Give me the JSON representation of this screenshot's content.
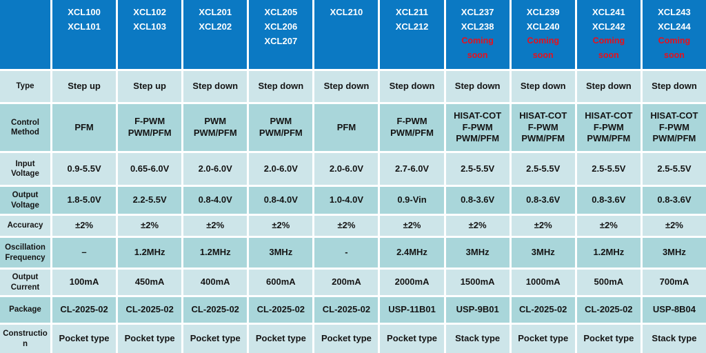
{
  "colors": {
    "header_blue": "#0b79c3",
    "row_light": "#cde5e9",
    "row_dark": "#a9d6da",
    "grid_white": "#ffffff",
    "text_dark": "#141414",
    "header_text": "#ffffff",
    "coming_soon_red": "#e8101c"
  },
  "table": {
    "coming_soon_label": "Coming soon",
    "columns": [
      {
        "models": "XCL100\nXCL101",
        "coming_soon": false
      },
      {
        "models": "XCL102\nXCL103",
        "coming_soon": false
      },
      {
        "models": "XCL201\nXCL202",
        "coming_soon": false
      },
      {
        "models": "XCL205\nXCL206\nXCL207",
        "coming_soon": false
      },
      {
        "models": "XCL210",
        "coming_soon": false
      },
      {
        "models": "XCL211\nXCL212",
        "coming_soon": false
      },
      {
        "models": "XCL237\nXCL238",
        "coming_soon": true
      },
      {
        "models": "XCL239\nXCL240",
        "coming_soon": true
      },
      {
        "models": "XCL241\nXCL242",
        "coming_soon": true
      },
      {
        "models": "XCL243\nXCL244",
        "coming_soon": true
      }
    ],
    "rows": [
      {
        "label": "Type",
        "values": [
          "Step up",
          "Step up",
          "Step down",
          "Step down",
          "Step down",
          "Step down",
          "Step down",
          "Step down",
          "Step down",
          "Step down"
        ]
      },
      {
        "label": "Control Method",
        "values": [
          "PFM",
          "F-PWM\nPWM/PFM",
          "PWM\nPWM/PFM",
          "PWM\nPWM/PFM",
          "PFM",
          "F-PWM\nPWM/PFM",
          "HISAT-COT\nF-PWM\nPWM/PFM",
          "HISAT-COT\nF-PWM\nPWM/PFM",
          "HISAT-COT\nF-PWM\nPWM/PFM",
          "HISAT-COT\nF-PWM\nPWM/PFM"
        ]
      },
      {
        "label": "Input Voltage",
        "values": [
          "0.9-5.5V",
          "0.65-6.0V",
          "2.0-6.0V",
          "2.0-6.0V",
          "2.0-6.0V",
          "2.7-6.0V",
          "2.5-5.5V",
          "2.5-5.5V",
          "2.5-5.5V",
          "2.5-5.5V"
        ]
      },
      {
        "label": "Output Voltage",
        "values": [
          "1.8-5.0V",
          "2.2-5.5V",
          "0.8-4.0V",
          "0.8-4.0V",
          "1.0-4.0V",
          "0.9-Vin",
          "0.8-3.6V",
          "0.8-3.6V",
          "0.8-3.6V",
          "0.8-3.6V"
        ]
      },
      {
        "label": "Accuracy",
        "values": [
          "±2%",
          "±2%",
          "±2%",
          "±2%",
          "±2%",
          "±2%",
          "±2%",
          "±2%",
          "±2%",
          "±2%"
        ]
      },
      {
        "label": "Oscillation Frequency",
        "values": [
          "–",
          "1.2MHz",
          "1.2MHz",
          "3MHz",
          "-",
          "2.4MHz",
          "3MHz",
          "3MHz",
          "1.2MHz",
          "3MHz"
        ]
      },
      {
        "label": "Output Current",
        "values": [
          "100mA",
          "450mA",
          "400mA",
          "600mA",
          "200mA",
          "2000mA",
          "1500mA",
          "1000mA",
          "500mA",
          "700mA"
        ]
      },
      {
        "label": "Package",
        "values": [
          "CL-2025-02",
          "CL-2025-02",
          "CL-2025-02",
          "CL-2025-02",
          "CL-2025-02",
          "USP-11B01",
          "USP-9B01",
          "CL-2025-02",
          "CL-2025-02",
          "USP-8B04"
        ]
      },
      {
        "label": "Construction",
        "values": [
          "Pocket type",
          "Pocket type",
          "Pocket type",
          "Pocket type",
          "Pocket type",
          "Pocket type",
          "Stack type",
          "Pocket type",
          "Pocket type",
          "Stack type"
        ]
      }
    ]
  }
}
